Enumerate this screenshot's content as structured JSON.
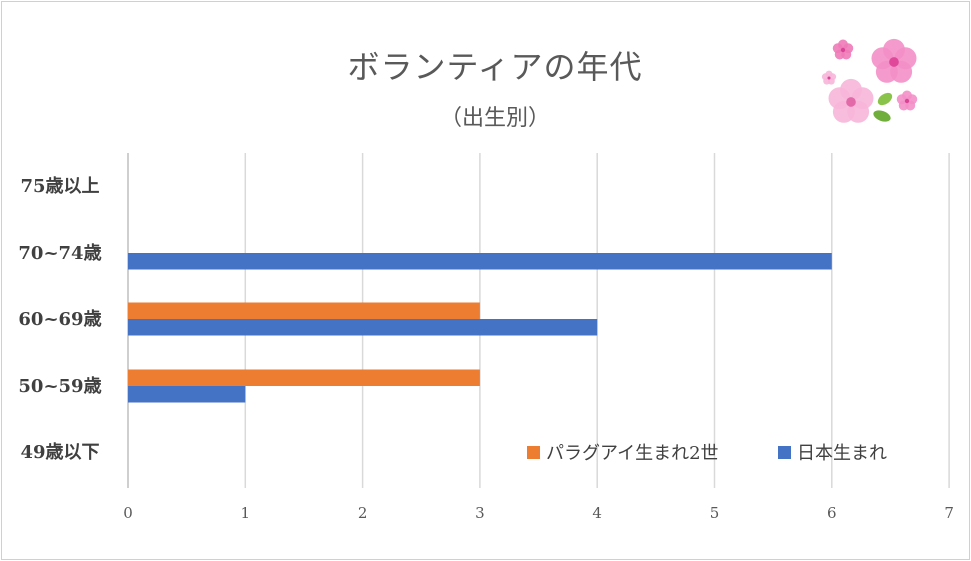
{
  "chart_data": {
    "type": "bar",
    "orientation": "horizontal",
    "title": "ボランティアの年代",
    "subtitle": "（出生別）",
    "categories": [
      "75歳以上",
      "70~74歳",
      "60~69歳",
      "50~59歳",
      "49歳以下"
    ],
    "series": [
      {
        "name": "パラグアイ生まれ2世",
        "color": "#ed7d31",
        "values": [
          0,
          0,
          3,
          3,
          0
        ]
      },
      {
        "name": "日本生まれ",
        "color": "#4472c4",
        "values": [
          0,
          6,
          4,
          1,
          0
        ]
      }
    ],
    "xlim": [
      0,
      7
    ],
    "x_ticks": [
      "0",
      "1",
      "2",
      "3",
      "4",
      "5",
      "6",
      "7"
    ],
    "grid": "vertical",
    "legend_position": "bottom-right",
    "decoration": "sakura-flowers-top-right"
  },
  "colors": {
    "gridline": "#d9d9d9",
    "axis": "#bfbfbf",
    "title": "#595959"
  }
}
